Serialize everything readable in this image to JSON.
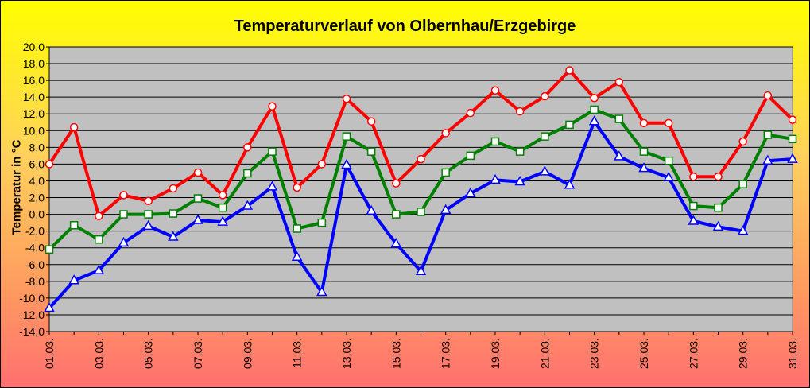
{
  "chart_data": {
    "type": "line",
    "title": "Temperaturverlauf von Olbernhau/Erzgebirge",
    "xlabel": "",
    "ylabel": "Temperatur in °C",
    "ylim": [
      -14,
      20
    ],
    "yticks": [
      "-14,0",
      "-12,0",
      "-10,0",
      "-8,0",
      "-6,0",
      "-4,0",
      "-2,0",
      "0,0",
      "2,0",
      "4,0",
      "6,0",
      "8,0",
      "10,0",
      "12,0",
      "14,0",
      "16,0",
      "18,0",
      "20,0"
    ],
    "categories": [
      "01.03.",
      "02.03.",
      "03.03.",
      "04.03.",
      "05.03.",
      "06.03.",
      "07.03.",
      "08.03.",
      "09.03.",
      "10.03.",
      "11.03.",
      "12.03.",
      "13.03.",
      "14.03.",
      "15.03.",
      "16.03.",
      "17.03.",
      "18.03.",
      "19.03.",
      "20.03.",
      "21.03.",
      "22.03.",
      "23.03.",
      "24.03.",
      "25.03.",
      "26.03.",
      "27.03.",
      "28.03.",
      "29.03.",
      "30.03.",
      "31.03."
    ],
    "xticks_shown": [
      "01.03.",
      "03.03.",
      "05.03.",
      "07.03.",
      "09.03.",
      "11.03.",
      "13.03.",
      "15.03.",
      "17.03.",
      "19.03.",
      "21.03.",
      "23.03.",
      "25.03.",
      "27.03.",
      "29.03.",
      "31.03."
    ],
    "grid": true,
    "series": [
      {
        "color": "#ff0000",
        "marker": "circle",
        "values": [
          6.0,
          10.4,
          -0.2,
          2.3,
          1.6,
          3.1,
          5.0,
          2.3,
          8.0,
          12.9,
          3.2,
          6.0,
          13.8,
          11.1,
          3.7,
          6.6,
          9.7,
          12.1,
          14.8,
          12.3,
          14.1,
          17.2,
          13.9,
          15.8,
          10.9,
          10.9,
          4.5,
          4.5,
          8.7,
          14.2,
          11.3
        ]
      },
      {
        "color": "#008000",
        "marker": "square",
        "values": [
          -4.2,
          -1.3,
          -3.0,
          0.0,
          0.0,
          0.1,
          1.9,
          0.8,
          4.9,
          7.5,
          -1.7,
          -1.0,
          9.3,
          7.5,
          0.0,
          0.3,
          5.0,
          7.0,
          8.7,
          7.5,
          9.3,
          10.7,
          12.5,
          11.4,
          7.5,
          6.4,
          1.0,
          0.8,
          3.6,
          9.5,
          9.0
        ]
      },
      {
        "color": "#0000ff",
        "marker": "triangle",
        "values": [
          -11.2,
          -7.9,
          -6.7,
          -3.4,
          -1.4,
          -2.7,
          -0.7,
          -0.9,
          1.0,
          3.3,
          -5.1,
          -9.3,
          5.9,
          0.4,
          -3.5,
          -6.8,
          0.5,
          2.5,
          4.1,
          3.9,
          5.1,
          3.5,
          11.1,
          6.9,
          5.5,
          4.4,
          -0.8,
          -1.5,
          -2.0,
          6.4,
          6.6
        ]
      }
    ]
  }
}
